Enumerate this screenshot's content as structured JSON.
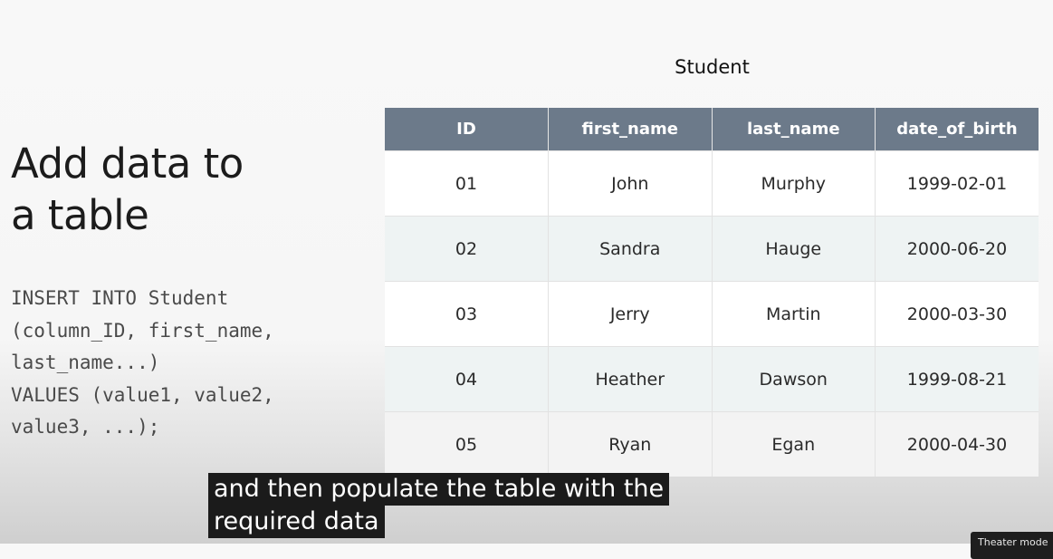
{
  "slide": {
    "title_line1": "Add data to",
    "title_line2": "a table",
    "code_lines": [
      "INSERT INTO Student",
      "(column_ID, first_name,",
      "last_name...)",
      "VALUES (value1, value2,",
      "value3, ...);"
    ]
  },
  "table": {
    "caption": "Student",
    "columns": [
      "ID",
      "first_name",
      "last_name",
      "date_of_birth"
    ],
    "rows": [
      [
        "01",
        "John",
        "Murphy",
        "1999-02-01"
      ],
      [
        "02",
        "Sandra",
        "Hauge",
        "2000-06-20"
      ],
      [
        "03",
        "Jerry",
        "Martin",
        "2000-03-30"
      ],
      [
        "04",
        "Heather",
        "Dawson",
        "1999-08-21"
      ],
      [
        "05",
        "Ryan",
        "Egan",
        "2000-04-30"
      ]
    ]
  },
  "captions": {
    "line1": "and then populate the table with the",
    "line2": "required data"
  },
  "player": {
    "tooltip": "Theater mode"
  }
}
